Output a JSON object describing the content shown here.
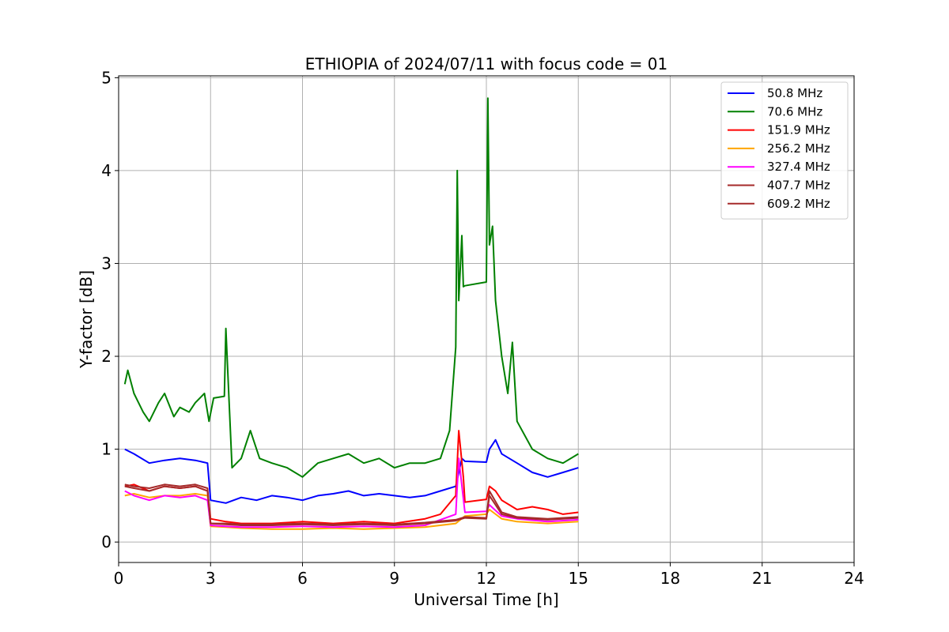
{
  "chart_data": {
    "type": "line",
    "title": "ETHIOPIA of 2024/07/11 with focus code = 01",
    "xlabel": "Universal Time [h]",
    "ylabel": "Y-factor [dB]",
    "xlim": [
      0,
      24
    ],
    "ylim": [
      -0.22,
      5.02
    ],
    "xticks": [
      0,
      3,
      6,
      9,
      12,
      15,
      18,
      21,
      24
    ],
    "xtick_labels": [
      "0",
      "3",
      "6",
      "9",
      "12",
      "15",
      "18",
      "21",
      "24"
    ],
    "yticks": [
      0,
      1,
      2,
      3,
      4,
      5
    ],
    "ytick_labels": [
      "0",
      "1",
      "2",
      "3",
      "4",
      "5"
    ],
    "grid": true,
    "legend_position": "top-right",
    "series": [
      {
        "name": " 50.8 MHz",
        "color": "#0000ff",
        "x": [
          0.2,
          0.5,
          1.0,
          1.5,
          2.0,
          2.5,
          2.9,
          3.0,
          3.5,
          4.0,
          4.5,
          5.0,
          5.5,
          6.0,
          6.5,
          7.0,
          7.5,
          8.0,
          8.5,
          9.0,
          9.5,
          10.0,
          10.5,
          11.0,
          11.2,
          11.3,
          12.0,
          12.1,
          12.3,
          12.5,
          13.0,
          13.5,
          14.0,
          14.5,
          15.0
        ],
        "y": [
          1.0,
          0.95,
          0.85,
          0.88,
          0.9,
          0.88,
          0.85,
          0.45,
          0.42,
          0.48,
          0.45,
          0.5,
          0.48,
          0.45,
          0.5,
          0.52,
          0.55,
          0.5,
          0.52,
          0.5,
          0.48,
          0.5,
          0.55,
          0.6,
          0.9,
          0.87,
          0.86,
          1.0,
          1.1,
          0.95,
          0.85,
          0.75,
          0.7,
          0.75,
          0.8
        ]
      },
      {
        "name": " 70.6 MHz",
        "color": "#008000",
        "x": [
          0.2,
          0.3,
          0.5,
          0.8,
          1.0,
          1.3,
          1.5,
          1.8,
          2.0,
          2.3,
          2.5,
          2.8,
          2.95,
          3.1,
          3.45,
          3.5,
          3.7,
          4.0,
          4.3,
          4.6,
          5.0,
          5.5,
          6.0,
          6.5,
          7.0,
          7.5,
          8.0,
          8.5,
          9.0,
          9.5,
          10.0,
          10.5,
          10.8,
          11.0,
          11.05,
          11.1,
          11.2,
          11.25,
          11.3,
          12.0,
          12.05,
          12.1,
          12.2,
          12.3,
          12.5,
          12.7,
          12.85,
          13.0,
          13.5,
          14.0,
          14.5,
          15.0
        ],
        "y": [
          1.7,
          1.85,
          1.6,
          1.4,
          1.3,
          1.5,
          1.6,
          1.35,
          1.45,
          1.4,
          1.5,
          1.6,
          1.3,
          1.55,
          1.57,
          2.3,
          0.8,
          0.9,
          1.2,
          0.9,
          0.85,
          0.8,
          0.7,
          0.85,
          0.9,
          0.95,
          0.85,
          0.9,
          0.8,
          0.85,
          0.85,
          0.9,
          1.2,
          2.1,
          4.0,
          2.6,
          3.3,
          2.75,
          2.76,
          2.8,
          4.78,
          3.2,
          3.4,
          2.6,
          2.0,
          1.6,
          2.15,
          1.3,
          1.0,
          0.9,
          0.85,
          0.95
        ]
      },
      {
        "name": "151.9 MHz",
        "color": "#ff0000",
        "x": [
          0.2,
          0.5,
          1.0,
          1.5,
          2.0,
          2.5,
          2.9,
          3.0,
          3.5,
          4.0,
          5.0,
          6.0,
          7.0,
          8.0,
          9.0,
          10.0,
          10.5,
          11.0,
          11.1,
          11.25,
          11.3,
          12.0,
          12.1,
          12.3,
          12.5,
          13.0,
          13.5,
          14.0,
          14.5,
          15.0
        ],
        "y": [
          0.6,
          0.62,
          0.55,
          0.6,
          0.58,
          0.6,
          0.55,
          0.25,
          0.22,
          0.2,
          0.2,
          0.22,
          0.2,
          0.22,
          0.2,
          0.25,
          0.3,
          0.5,
          1.2,
          0.7,
          0.43,
          0.46,
          0.6,
          0.55,
          0.45,
          0.35,
          0.38,
          0.35,
          0.3,
          0.32
        ]
      },
      {
        "name": "256.2 MHz",
        "color": "#ffa500",
        "x": [
          0.2,
          0.5,
          1.0,
          1.5,
          2.0,
          2.5,
          2.9,
          3.0,
          3.5,
          4.0,
          5.0,
          6.0,
          7.0,
          8.0,
          9.0,
          10.0,
          11.0,
          11.3,
          12.0,
          12.1,
          12.5,
          13.0,
          14.0,
          15.0
        ],
        "y": [
          0.5,
          0.52,
          0.48,
          0.5,
          0.5,
          0.52,
          0.5,
          0.17,
          0.16,
          0.15,
          0.14,
          0.14,
          0.15,
          0.14,
          0.15,
          0.16,
          0.2,
          0.28,
          0.3,
          0.35,
          0.25,
          0.22,
          0.2,
          0.22
        ]
      },
      {
        "name": "327.4 MHz",
        "color": "#ff00ff",
        "x": [
          0.2,
          0.5,
          1.0,
          1.5,
          2.0,
          2.5,
          2.9,
          3.0,
          3.5,
          4.0,
          5.0,
          6.0,
          7.0,
          8.0,
          9.0,
          10.0,
          11.0,
          11.1,
          11.3,
          12.0,
          12.1,
          12.5,
          13.0,
          14.0,
          15.0
        ],
        "y": [
          0.55,
          0.5,
          0.45,
          0.5,
          0.48,
          0.5,
          0.45,
          0.18,
          0.17,
          0.16,
          0.16,
          0.17,
          0.16,
          0.17,
          0.16,
          0.18,
          0.3,
          0.9,
          0.32,
          0.33,
          0.4,
          0.28,
          0.25,
          0.22,
          0.24
        ]
      },
      {
        "name": "407.7 MHz",
        "color": "#a52a2a",
        "x": [
          0.2,
          0.5,
          1.0,
          1.5,
          2.0,
          2.5,
          2.9,
          3.0,
          3.5,
          4.0,
          5.0,
          6.0,
          7.0,
          8.0,
          9.0,
          10.0,
          11.0,
          11.3,
          12.0,
          12.1,
          12.5,
          13.0,
          14.0,
          15.0
        ],
        "y": [
          0.6,
          0.58,
          0.55,
          0.6,
          0.58,
          0.6,
          0.55,
          0.2,
          0.19,
          0.18,
          0.18,
          0.19,
          0.18,
          0.19,
          0.18,
          0.2,
          0.23,
          0.26,
          0.25,
          0.5,
          0.3,
          0.26,
          0.24,
          0.26
        ]
      },
      {
        "name": "609.2 MHz",
        "color": "#a52a2a",
        "x": [
          0.2,
          0.5,
          1.0,
          1.5,
          2.0,
          2.5,
          2.9,
          3.0,
          3.5,
          4.0,
          5.0,
          6.0,
          7.0,
          8.0,
          9.0,
          10.0,
          11.0,
          11.3,
          12.0,
          12.1,
          12.5,
          13.0,
          14.0,
          15.0
        ],
        "y": [
          0.62,
          0.6,
          0.58,
          0.62,
          0.6,
          0.62,
          0.58,
          0.2,
          0.2,
          0.19,
          0.19,
          0.2,
          0.19,
          0.2,
          0.19,
          0.21,
          0.24,
          0.27,
          0.26,
          0.55,
          0.32,
          0.27,
          0.25,
          0.27
        ]
      }
    ]
  }
}
